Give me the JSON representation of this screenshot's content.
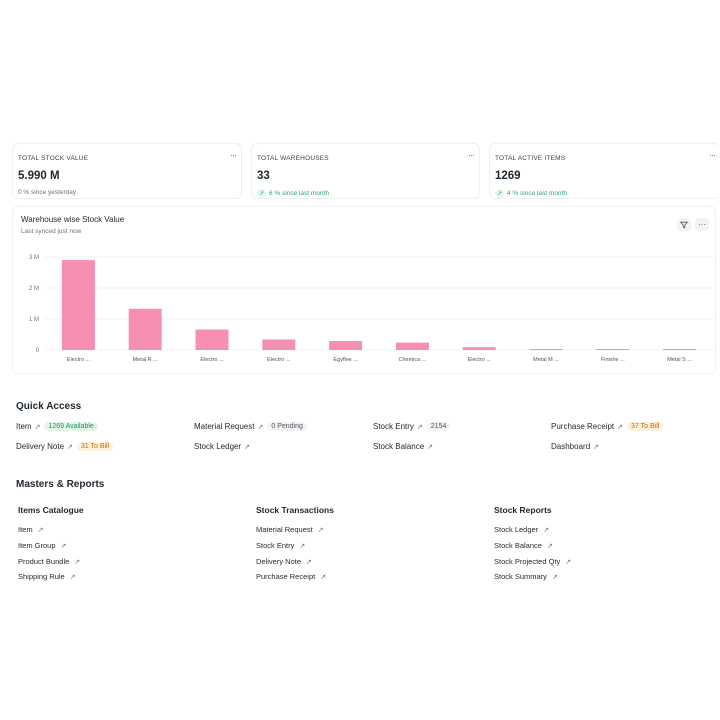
{
  "kpis": [
    {
      "title": "TOTAL STOCK VALUE",
      "value": "5.990 M",
      "sub": "0 % since yesterday",
      "trend": "neutral"
    },
    {
      "title": "TOTAL WAREHOUSES",
      "value": "33",
      "sub": "6 % since last month",
      "trend": "up"
    },
    {
      "title": "TOTAL ACTIVE ITEMS",
      "value": "1269",
      "sub": "4 % since last month",
      "trend": "up"
    }
  ],
  "kpi_menu": "···",
  "chart": {
    "title": "Warehouse wise Stock Value",
    "subtitle": "Last synced just now",
    "filter_icon": "filter-icon",
    "menu_icon": "more-icon"
  },
  "chart_data": {
    "type": "bar",
    "title": "Warehouse wise Stock Value",
    "categories": [
      "Electro ...",
      "Metal R ...",
      "Electro ...",
      "Electro ...",
      "Egyflee ...",
      "Chemica ...",
      "Electro ...",
      "Metal M ...",
      "Finishe ...",
      "Metal S ..."
    ],
    "values": [
      2900000,
      1330000,
      660000,
      340000,
      290000,
      240000,
      90000,
      30000,
      20000,
      20000
    ],
    "ylim": [
      0,
      3000000
    ],
    "yticks": [
      "0",
      "1 M",
      "2 M",
      "3 M"
    ],
    "grid": true,
    "color": "#f78fb3"
  },
  "quick_access": {
    "title": "Quick Access",
    "items": [
      {
        "label": "Item",
        "badge": "1269 Available",
        "badge_style": "green"
      },
      {
        "label": "Material Request",
        "badge": "0 Pending",
        "badge_style": "gray"
      },
      {
        "label": "Stock Entry",
        "badge": "2154",
        "badge_style": "gray"
      },
      {
        "label": "Purchase Receipt",
        "badge": "37 To Bill",
        "badge_style": "orange"
      },
      {
        "label": "Delivery Note",
        "badge": "31 To Bill",
        "badge_style": "orange"
      },
      {
        "label": "Stock Ledger",
        "badge": "",
        "badge_style": ""
      },
      {
        "label": "Stock Balance",
        "badge": "",
        "badge_style": ""
      },
      {
        "label": "Dashboard",
        "badge": "",
        "badge_style": ""
      }
    ]
  },
  "masters": {
    "title": "Masters & Reports",
    "columns": [
      {
        "title": "Items Catalogue",
        "links": [
          "Item",
          "Item Group",
          "Product Bundle",
          "Shipping Rule"
        ]
      },
      {
        "title": "Stock Transactions",
        "links": [
          "Material Request",
          "Stock Entry",
          "Delivery Note",
          "Purchase Receipt"
        ]
      },
      {
        "title": "Stock Reports",
        "links": [
          "Stock Ledger",
          "Stock Balance",
          "Stock Projected Qty",
          "Stock Summary"
        ]
      }
    ]
  }
}
